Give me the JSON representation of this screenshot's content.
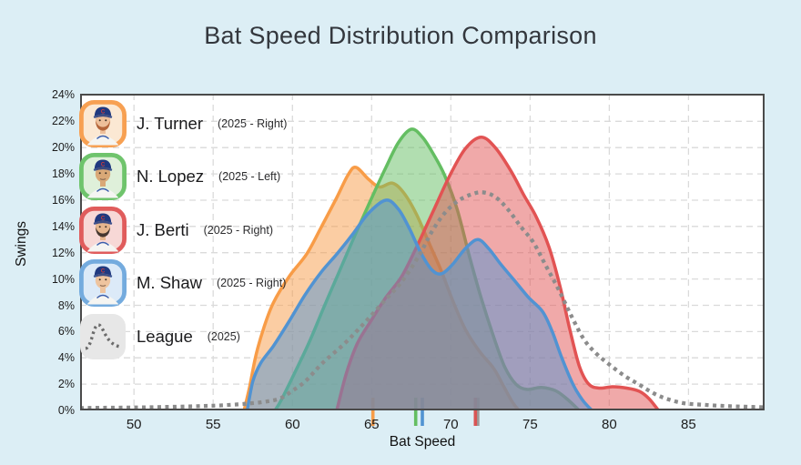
{
  "title": "Bat Speed Distribution Comparison",
  "colors": {
    "page_bg": "#dceef5",
    "plot_bg": "#ffffff",
    "grid": "#dadada",
    "frame": "#4a4a4a",
    "title_text": "#33373d",
    "tick_text": "#1c1c1c"
  },
  "axes": {
    "x_label": "Bat Speed",
    "y_label": "Swings",
    "x_ticks": [
      50,
      55,
      60,
      65,
      70,
      75,
      80,
      85
    ],
    "y_ticks": [
      0,
      2,
      4,
      6,
      8,
      10,
      12,
      14,
      16,
      18,
      20,
      22,
      24
    ],
    "y_tick_suffix": "%",
    "x_range": [
      46.6,
      89.8
    ],
    "y_range": [
      0,
      24.1
    ],
    "grid_on": true
  },
  "legend": {
    "items": [
      {
        "name": "J. Turner",
        "meta": "(2025 - Right)",
        "avatar": {
          "kind": "player",
          "border": "#f7a052",
          "bg": "#fbe8d3",
          "skin": "#edbf9a",
          "beard": "#b4653a",
          "cap": "#20397f"
        }
      },
      {
        "name": "N. Lopez",
        "meta": "(2025 - Left)",
        "avatar": {
          "kind": "player",
          "border": "#6fc46c",
          "bg": "#dff0da",
          "skin": "#d9a877",
          "beard": null,
          "cap": "#20397f"
        }
      },
      {
        "name": "J. Berti",
        "meta": "(2025 - Right)",
        "avatar": {
          "kind": "player",
          "border": "#e05c5c",
          "bg": "#f7d8d6",
          "skin": "#e6b68e",
          "beard": "#453730",
          "cap": "#20397f"
        }
      },
      {
        "name": "M. Shaw",
        "meta": "(2025 - Right)",
        "avatar": {
          "kind": "player",
          "border": "#74abde",
          "bg": "#dceaf8",
          "skin": "#eec49f",
          "beard": null,
          "cap": "#20397f"
        }
      },
      {
        "name": "League",
        "meta": "(2025)",
        "avatar": {
          "kind": "league",
          "bg": "#e7e7e7",
          "line": "#6b6b6b"
        }
      }
    ]
  },
  "chart_data": {
    "type": "area",
    "title": "Bat Speed Distribution Comparison",
    "xlabel": "Bat Speed",
    "ylabel": "Swings",
    "x_units": "mph",
    "y_units": "percent_of_swings",
    "xlim": [
      46.6,
      89.8
    ],
    "ylim": [
      0,
      24.1
    ],
    "legend_position": "upper-left-overlay",
    "series": [
      {
        "name": "J. Turner (2025 - Right)",
        "color": "#f89c47",
        "fill_opacity": 0.5,
        "style": "solid",
        "points": [
          [
            56.95,
            0
          ],
          [
            57.3,
            1.8
          ],
          [
            57.7,
            4.2
          ],
          [
            58.2,
            6.3
          ],
          [
            58.8,
            8.2
          ],
          [
            59.8,
            10.2
          ],
          [
            60.9,
            11.9
          ],
          [
            61.8,
            13.9
          ],
          [
            62.8,
            16.2
          ],
          [
            63.5,
            17.9
          ],
          [
            64.0,
            18.5
          ],
          [
            64.8,
            17.6
          ],
          [
            65.5,
            17.0
          ],
          [
            66.3,
            17.3
          ],
          [
            67.0,
            16.6
          ],
          [
            67.8,
            15.0
          ],
          [
            68.6,
            12.8
          ],
          [
            69.4,
            10.6
          ],
          [
            70.1,
            8.4
          ],
          [
            70.9,
            6.2
          ],
          [
            71.8,
            4.5
          ],
          [
            72.7,
            3.2
          ],
          [
            73.3,
            1.9
          ],
          [
            73.9,
            0.6
          ],
          [
            74.3,
            0
          ]
        ]
      },
      {
        "name": "N. Lopez (2025 - Left)",
        "color": "#64be62",
        "fill_opacity": 0.5,
        "style": "solid",
        "points": [
          [
            58.9,
            0
          ],
          [
            59.3,
            0.8
          ],
          [
            60.2,
            3.0
          ],
          [
            61.1,
            5.3
          ],
          [
            62.0,
            7.9
          ],
          [
            62.9,
            10.4
          ],
          [
            63.9,
            13.2
          ],
          [
            64.9,
            15.9
          ],
          [
            65.9,
            18.5
          ],
          [
            66.7,
            20.4
          ],
          [
            67.5,
            21.4
          ],
          [
            68.2,
            20.8
          ],
          [
            68.9,
            19.5
          ],
          [
            69.6,
            17.9
          ],
          [
            70.4,
            15.3
          ],
          [
            71.2,
            11.6
          ],
          [
            71.9,
            8.6
          ],
          [
            72.7,
            5.6
          ],
          [
            73.4,
            3.3
          ],
          [
            74.1,
            2.0
          ],
          [
            74.8,
            1.6
          ],
          [
            75.7,
            1.75
          ],
          [
            76.6,
            1.5
          ],
          [
            77.3,
            0.9
          ],
          [
            78.1,
            0
          ]
        ]
      },
      {
        "name": "J. Berti (2025 - Right)",
        "color": "#e25353",
        "fill_opacity": 0.5,
        "style": "solid",
        "points": [
          [
            62.8,
            0
          ],
          [
            63.4,
            2.8
          ],
          [
            64.1,
            5.1
          ],
          [
            65.0,
            6.9
          ],
          [
            65.9,
            8.6
          ],
          [
            66.9,
            10.2
          ],
          [
            67.9,
            12.6
          ],
          [
            68.9,
            15.2
          ],
          [
            69.9,
            17.8
          ],
          [
            70.9,
            19.9
          ],
          [
            71.9,
            20.8
          ],
          [
            72.8,
            20.0
          ],
          [
            73.8,
            18.2
          ],
          [
            74.6,
            16.4
          ],
          [
            75.4,
            14.7
          ],
          [
            76.2,
            12.4
          ],
          [
            76.9,
            9.4
          ],
          [
            77.5,
            6.2
          ],
          [
            78.1,
            3.4
          ],
          [
            78.7,
            2.0
          ],
          [
            79.4,
            1.7
          ],
          [
            80.2,
            1.8
          ],
          [
            81.1,
            1.7
          ],
          [
            81.9,
            1.45
          ],
          [
            82.5,
            0.9
          ],
          [
            83.1,
            0
          ]
        ]
      },
      {
        "name": "M. Shaw (2025 - Right)",
        "color": "#5193d2",
        "fill_opacity": 0.5,
        "style": "solid",
        "points": [
          [
            57.15,
            0
          ],
          [
            57.5,
            2.2
          ],
          [
            58.0,
            3.6
          ],
          [
            58.8,
            4.9
          ],
          [
            59.8,
            6.8
          ],
          [
            60.8,
            8.8
          ],
          [
            61.8,
            10.5
          ],
          [
            62.8,
            11.9
          ],
          [
            63.8,
            13.4
          ],
          [
            64.8,
            15.0
          ],
          [
            65.9,
            16.0
          ],
          [
            66.7,
            15.3
          ],
          [
            67.4,
            13.8
          ],
          [
            68.1,
            12.0
          ],
          [
            68.8,
            10.7
          ],
          [
            69.4,
            10.4
          ],
          [
            70.1,
            11.1
          ],
          [
            70.9,
            12.3
          ],
          [
            71.7,
            13.0
          ],
          [
            72.4,
            12.3
          ],
          [
            73.1,
            11.2
          ],
          [
            74.0,
            9.9
          ],
          [
            74.9,
            8.6
          ],
          [
            75.8,
            7.5
          ],
          [
            76.4,
            6.0
          ],
          [
            77.0,
            4.0
          ],
          [
            77.7,
            2.0
          ],
          [
            78.3,
            0.8
          ],
          [
            78.9,
            0
          ]
        ]
      },
      {
        "name": "League (2025)",
        "color": "#8c8c8c",
        "fill_opacity": 0,
        "style": "dotted",
        "points": [
          [
            46.6,
            0.18
          ],
          [
            48,
            0.2
          ],
          [
            50,
            0.22
          ],
          [
            52,
            0.26
          ],
          [
            54,
            0.32
          ],
          [
            55.5,
            0.38
          ],
          [
            57,
            0.5
          ],
          [
            58.2,
            0.65
          ],
          [
            59.2,
            0.9
          ],
          [
            60,
            1.5
          ],
          [
            60.8,
            2.2
          ],
          [
            61.9,
            3.6
          ],
          [
            63.3,
            5.1
          ],
          [
            64.5,
            6.6
          ],
          [
            65.7,
            8.2
          ],
          [
            66.9,
            9.8
          ],
          [
            68.0,
            11.8
          ],
          [
            68.8,
            13.6
          ],
          [
            69.6,
            15.0
          ],
          [
            70.4,
            15.9
          ],
          [
            71.2,
            16.4
          ],
          [
            72.0,
            16.6
          ],
          [
            72.8,
            16.25
          ],
          [
            73.6,
            15.3
          ],
          [
            74.4,
            14.0
          ],
          [
            75.2,
            12.8
          ],
          [
            76.0,
            11.0
          ],
          [
            76.8,
            9.2
          ],
          [
            77.6,
            7.2
          ],
          [
            78.4,
            5.4
          ],
          [
            79.2,
            4.3
          ],
          [
            80.1,
            3.4
          ],
          [
            81.0,
            2.6
          ],
          [
            81.9,
            1.95
          ],
          [
            82.8,
            1.3
          ],
          [
            83.7,
            0.85
          ],
          [
            84.7,
            0.55
          ],
          [
            86.0,
            0.42
          ],
          [
            87.4,
            0.33
          ],
          [
            88.8,
            0.27
          ],
          [
            89.8,
            0.24
          ]
        ]
      }
    ],
    "mean_markers": [
      {
        "player": "League",
        "value": 71.7,
        "color": "#9a9a9a"
      },
      {
        "player": "J. Turner",
        "value": 65.08,
        "color": "#f89c47"
      },
      {
        "player": "N. Lopez",
        "value": 67.78,
        "color": "#64be62"
      },
      {
        "player": "M. Shaw",
        "value": 68.2,
        "color": "#5193d2"
      },
      {
        "player": "J. Berti",
        "value": 71.55,
        "color": "#d95454"
      }
    ]
  }
}
